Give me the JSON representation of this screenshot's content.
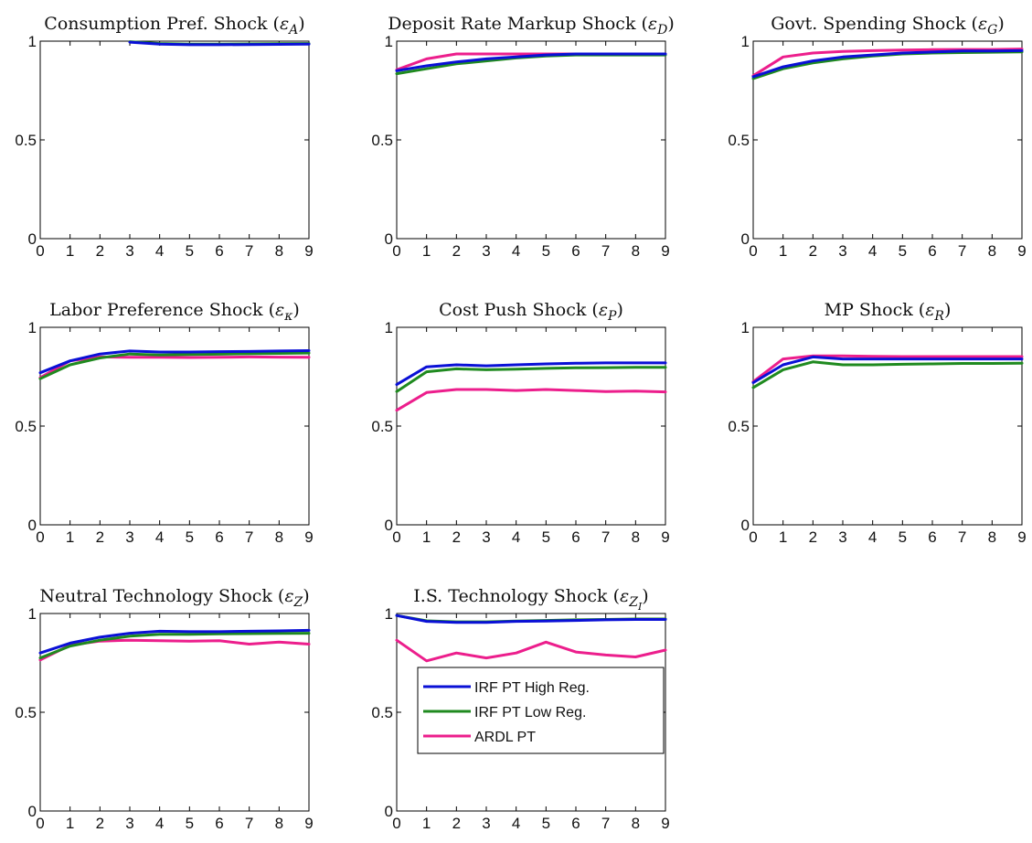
{
  "colors": {
    "high": "#0a10d6",
    "low": "#1f8a1f",
    "ardl": "#ec1e8c"
  },
  "legend": {
    "items": [
      {
        "key": "high",
        "label": "IRF PT High Reg."
      },
      {
        "key": "low",
        "label": "IRF PT Low Reg."
      },
      {
        "key": "ardl",
        "label": "ARDL PT"
      }
    ]
  },
  "chart_data": [
    {
      "type": "line",
      "title": "Consumption Pref. Shock (",
      "symbol": "ε",
      "sub": "A",
      "subsub": "",
      "x": [
        0,
        1,
        2,
        3,
        4,
        5,
        6,
        7,
        8,
        9
      ],
      "xticks": [
        "0",
        "1",
        "2",
        "3",
        "4",
        "5",
        "6",
        "7",
        "8",
        "9"
      ],
      "yticks": [
        "0",
        "0.5",
        "1"
      ],
      "xlim": [
        0,
        9
      ],
      "ylim": [
        0,
        1
      ],
      "series": [
        {
          "key": "high",
          "values": [
            null,
            null,
            null,
            0.995,
            0.985,
            0.982,
            0.982,
            0.983,
            0.984,
            0.985
          ]
        },
        {
          "key": "low",
          "values": [
            null,
            null,
            null,
            0.997,
            0.988,
            0.985,
            0.985,
            0.986,
            0.987,
            0.988
          ]
        }
      ]
    },
    {
      "type": "line",
      "title": "Deposit Rate Markup Shock (",
      "symbol": "ε",
      "sub": "D",
      "subsub": "",
      "x": [
        0,
        1,
        2,
        3,
        4,
        5,
        6,
        7,
        8,
        9
      ],
      "xticks": [
        "0",
        "1",
        "2",
        "3",
        "4",
        "5",
        "6",
        "7",
        "8",
        "9"
      ],
      "yticks": [
        "0",
        "0.5",
        "1"
      ],
      "xlim": [
        0,
        9
      ],
      "ylim": [
        0,
        1
      ],
      "series": [
        {
          "key": "high",
          "values": [
            0.85,
            0.875,
            0.895,
            0.91,
            0.92,
            0.93,
            0.935,
            0.935,
            0.935,
            0.935
          ]
        },
        {
          "key": "low",
          "values": [
            0.835,
            0.86,
            0.885,
            0.9,
            0.915,
            0.925,
            0.93,
            0.93,
            0.93,
            0.93
          ]
        },
        {
          "key": "ardl",
          "values": [
            0.855,
            0.91,
            0.935,
            0.935,
            0.935,
            0.935,
            0.935,
            0.935,
            0.935,
            0.935
          ]
        }
      ]
    },
    {
      "type": "line",
      "title": "Govt. Spending Shock (",
      "symbol": "ε",
      "sub": "G",
      "subsub": "",
      "x": [
        0,
        1,
        2,
        3,
        4,
        5,
        6,
        7,
        8,
        9
      ],
      "xticks": [
        "0",
        "1",
        "2",
        "3",
        "4",
        "5",
        "6",
        "7",
        "8",
        "9"
      ],
      "yticks": [
        "0",
        "0.5",
        "1"
      ],
      "xlim": [
        0,
        9
      ],
      "ylim": [
        0,
        1
      ],
      "series": [
        {
          "key": "high",
          "values": [
            0.82,
            0.87,
            0.9,
            0.92,
            0.93,
            0.94,
            0.945,
            0.95,
            0.95,
            0.952
          ]
        },
        {
          "key": "low",
          "values": [
            0.81,
            0.86,
            0.89,
            0.91,
            0.925,
            0.935,
            0.94,
            0.942,
            0.944,
            0.946
          ]
        },
        {
          "key": "ardl",
          "values": [
            0.825,
            0.92,
            0.94,
            0.948,
            0.952,
            0.955,
            0.957,
            0.958,
            0.958,
            0.96
          ]
        }
      ]
    },
    {
      "type": "line",
      "title": "Labor Preference Shock (",
      "symbol": "ε",
      "sub": "κ",
      "subsub": "",
      "x": [
        0,
        1,
        2,
        3,
        4,
        5,
        6,
        7,
        8,
        9
      ],
      "xticks": [
        "0",
        "1",
        "2",
        "3",
        "4",
        "5",
        "6",
        "7",
        "8",
        "9"
      ],
      "yticks": [
        "0",
        "0.5",
        "1"
      ],
      "xlim": [
        0,
        9
      ],
      "ylim": [
        0,
        1
      ],
      "series": [
        {
          "key": "high",
          "values": [
            0.77,
            0.83,
            0.865,
            0.88,
            0.875,
            0.875,
            0.877,
            0.878,
            0.88,
            0.882
          ]
        },
        {
          "key": "low",
          "values": [
            0.74,
            0.81,
            0.845,
            0.865,
            0.86,
            0.862,
            0.864,
            0.866,
            0.868,
            0.87
          ]
        },
        {
          "key": "ardl",
          "values": [
            0.745,
            0.83,
            0.85,
            0.848,
            0.848,
            0.847,
            0.848,
            0.85,
            0.849,
            0.848
          ]
        }
      ]
    },
    {
      "type": "line",
      "title": "Cost Push Shock (",
      "symbol": "ε",
      "sub": "P",
      "subsub": "",
      "x": [
        0,
        1,
        2,
        3,
        4,
        5,
        6,
        7,
        8,
        9
      ],
      "xticks": [
        "0",
        "1",
        "2",
        "3",
        "4",
        "5",
        "6",
        "7",
        "8",
        "9"
      ],
      "yticks": [
        "0",
        "0.5",
        "1"
      ],
      "xlim": [
        0,
        9
      ],
      "ylim": [
        0,
        1
      ],
      "series": [
        {
          "key": "high",
          "values": [
            0.71,
            0.8,
            0.81,
            0.805,
            0.81,
            0.815,
            0.818,
            0.82,
            0.82,
            0.82
          ]
        },
        {
          "key": "low",
          "values": [
            0.675,
            0.775,
            0.79,
            0.785,
            0.788,
            0.792,
            0.795,
            0.796,
            0.797,
            0.797
          ]
        },
        {
          "key": "ardl",
          "values": [
            0.58,
            0.67,
            0.685,
            0.685,
            0.68,
            0.685,
            0.68,
            0.675,
            0.677,
            0.673
          ]
        }
      ]
    },
    {
      "type": "line",
      "title": "MP Shock (",
      "symbol": "ε",
      "sub": "R",
      "subsub": "",
      "x": [
        0,
        1,
        2,
        3,
        4,
        5,
        6,
        7,
        8,
        9
      ],
      "xticks": [
        "0",
        "1",
        "2",
        "3",
        "4",
        "5",
        "6",
        "7",
        "8",
        "9"
      ],
      "yticks": [
        "0",
        "0.5",
        "1"
      ],
      "xlim": [
        0,
        9
      ],
      "ylim": [
        0,
        1
      ],
      "series": [
        {
          "key": "high",
          "values": [
            0.72,
            0.81,
            0.85,
            0.84,
            0.84,
            0.84,
            0.84,
            0.84,
            0.84,
            0.84
          ]
        },
        {
          "key": "low",
          "values": [
            0.695,
            0.785,
            0.825,
            0.81,
            0.81,
            0.813,
            0.815,
            0.817,
            0.817,
            0.818
          ]
        },
        {
          "key": "ardl",
          "values": [
            0.725,
            0.84,
            0.855,
            0.855,
            0.853,
            0.852,
            0.852,
            0.852,
            0.852,
            0.852
          ]
        }
      ]
    },
    {
      "type": "line",
      "title": "Neutral Technology Shock (",
      "symbol": "ε",
      "sub": "Z",
      "subsub": "",
      "x": [
        0,
        1,
        2,
        3,
        4,
        5,
        6,
        7,
        8,
        9
      ],
      "xticks": [
        "0",
        "1",
        "2",
        "3",
        "4",
        "5",
        "6",
        "7",
        "8",
        "9"
      ],
      "yticks": [
        "0",
        "0.5",
        "1"
      ],
      "xlim": [
        0,
        9
      ],
      "ylim": [
        0,
        1
      ],
      "series": [
        {
          "key": "high",
          "values": [
            0.8,
            0.85,
            0.88,
            0.9,
            0.91,
            0.908,
            0.908,
            0.91,
            0.912,
            0.915
          ]
        },
        {
          "key": "low",
          "values": [
            0.775,
            0.835,
            0.865,
            0.885,
            0.895,
            0.895,
            0.897,
            0.898,
            0.899,
            0.9
          ]
        },
        {
          "key": "ardl",
          "values": [
            0.765,
            0.84,
            0.86,
            0.865,
            0.862,
            0.86,
            0.862,
            0.845,
            0.855,
            0.845
          ]
        }
      ]
    },
    {
      "type": "line",
      "title": "I.S. Technology Shock (",
      "symbol": "ε",
      "sub": "Z",
      "subsub": "I",
      "x": [
        0,
        1,
        2,
        3,
        4,
        5,
        6,
        7,
        8,
        9
      ],
      "xticks": [
        "0",
        "1",
        "2",
        "3",
        "4",
        "5",
        "6",
        "7",
        "8",
        "9"
      ],
      "yticks": [
        "0",
        "0.5",
        "1"
      ],
      "xlim": [
        0,
        9
      ],
      "ylim": [
        0,
        1
      ],
      "series": [
        {
          "key": "high",
          "values": [
            0.99,
            0.96,
            0.955,
            0.955,
            0.96,
            0.962,
            0.965,
            0.968,
            0.97,
            0.97
          ]
        },
        {
          "key": "low",
          "values": [
            0.99,
            0.963,
            0.958,
            0.958,
            0.962,
            0.965,
            0.968,
            0.97,
            0.972,
            0.972
          ]
        },
        {
          "key": "ardl",
          "values": [
            0.865,
            0.76,
            0.8,
            0.775,
            0.8,
            0.855,
            0.805,
            0.79,
            0.78,
            0.815
          ]
        }
      ]
    }
  ]
}
